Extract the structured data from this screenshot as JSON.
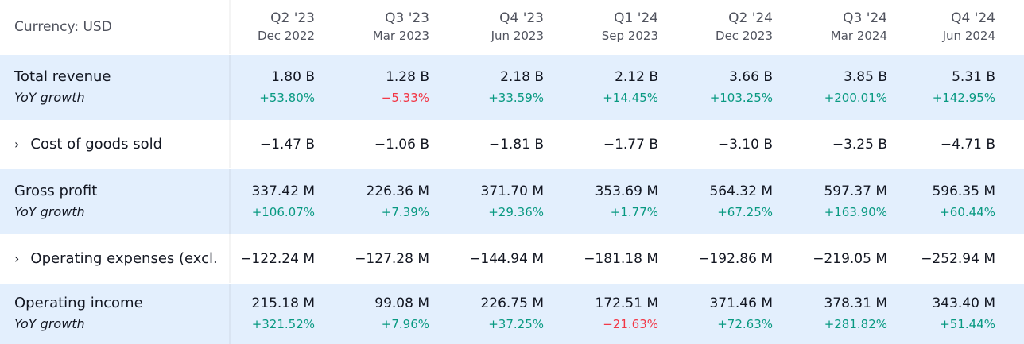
{
  "header": {
    "currency_label": "Currency: USD",
    "columns": [
      {
        "quarter": "Q2 '23",
        "date": "Dec 2022"
      },
      {
        "quarter": "Q3 '23",
        "date": "Mar 2023"
      },
      {
        "quarter": "Q4 '23",
        "date": "Jun 2023"
      },
      {
        "quarter": "Q1 '24",
        "date": "Sep 2023"
      },
      {
        "quarter": "Q2 '24",
        "date": "Dec 2023"
      },
      {
        "quarter": "Q3 '24",
        "date": "Mar 2024"
      },
      {
        "quarter": "Q4 '24",
        "date": "Jun 2024"
      }
    ]
  },
  "rows": {
    "total_revenue": {
      "label": "Total revenue",
      "sub_label": "YoY growth",
      "values": [
        "1.80 B",
        "1.28 B",
        "2.18 B",
        "2.12 B",
        "3.66 B",
        "3.85 B",
        "5.31 B"
      ],
      "growth": [
        "+53.80%",
        "−5.33%",
        "+33.59%",
        "+14.45%",
        "+103.25%",
        "+200.01%",
        "+142.95%"
      ]
    },
    "cogs": {
      "label": "Cost of goods sold",
      "chevron": "›",
      "values": [
        "−1.47 B",
        "−1.06 B",
        "−1.81 B",
        "−1.77 B",
        "−3.10 B",
        "−3.25 B",
        "−4.71 B"
      ]
    },
    "gross_profit": {
      "label": "Gross profit",
      "sub_label": "YoY growth",
      "values": [
        "337.42 M",
        "226.36 M",
        "371.70 M",
        "353.69 M",
        "564.32 M",
        "597.37 M",
        "596.35 M"
      ],
      "growth": [
        "+106.07%",
        "+7.39%",
        "+29.36%",
        "+1.77%",
        "+67.25%",
        "+163.90%",
        "+60.44%"
      ]
    },
    "opex": {
      "label": "Operating expenses (excl.",
      "chevron": "›",
      "values": [
        "−122.24 M",
        "−127.28 M",
        "−144.94 M",
        "−181.18 M",
        "−192.86 M",
        "−219.05 M",
        "−252.94 M"
      ]
    },
    "operating_income": {
      "label": "Operating income",
      "sub_label": "YoY growth",
      "values": [
        "215.18 M",
        "99.08 M",
        "226.75 M",
        "172.51 M",
        "371.46 M",
        "378.31 M",
        "343.40 M"
      ],
      "growth": [
        "+321.52%",
        "+7.96%",
        "+37.25%",
        "−21.63%",
        "+72.63%",
        "+281.82%",
        "+51.44%"
      ]
    }
  },
  "colors": {
    "positive": "#089981",
    "negative": "#f23645",
    "band": "#e3effd"
  }
}
